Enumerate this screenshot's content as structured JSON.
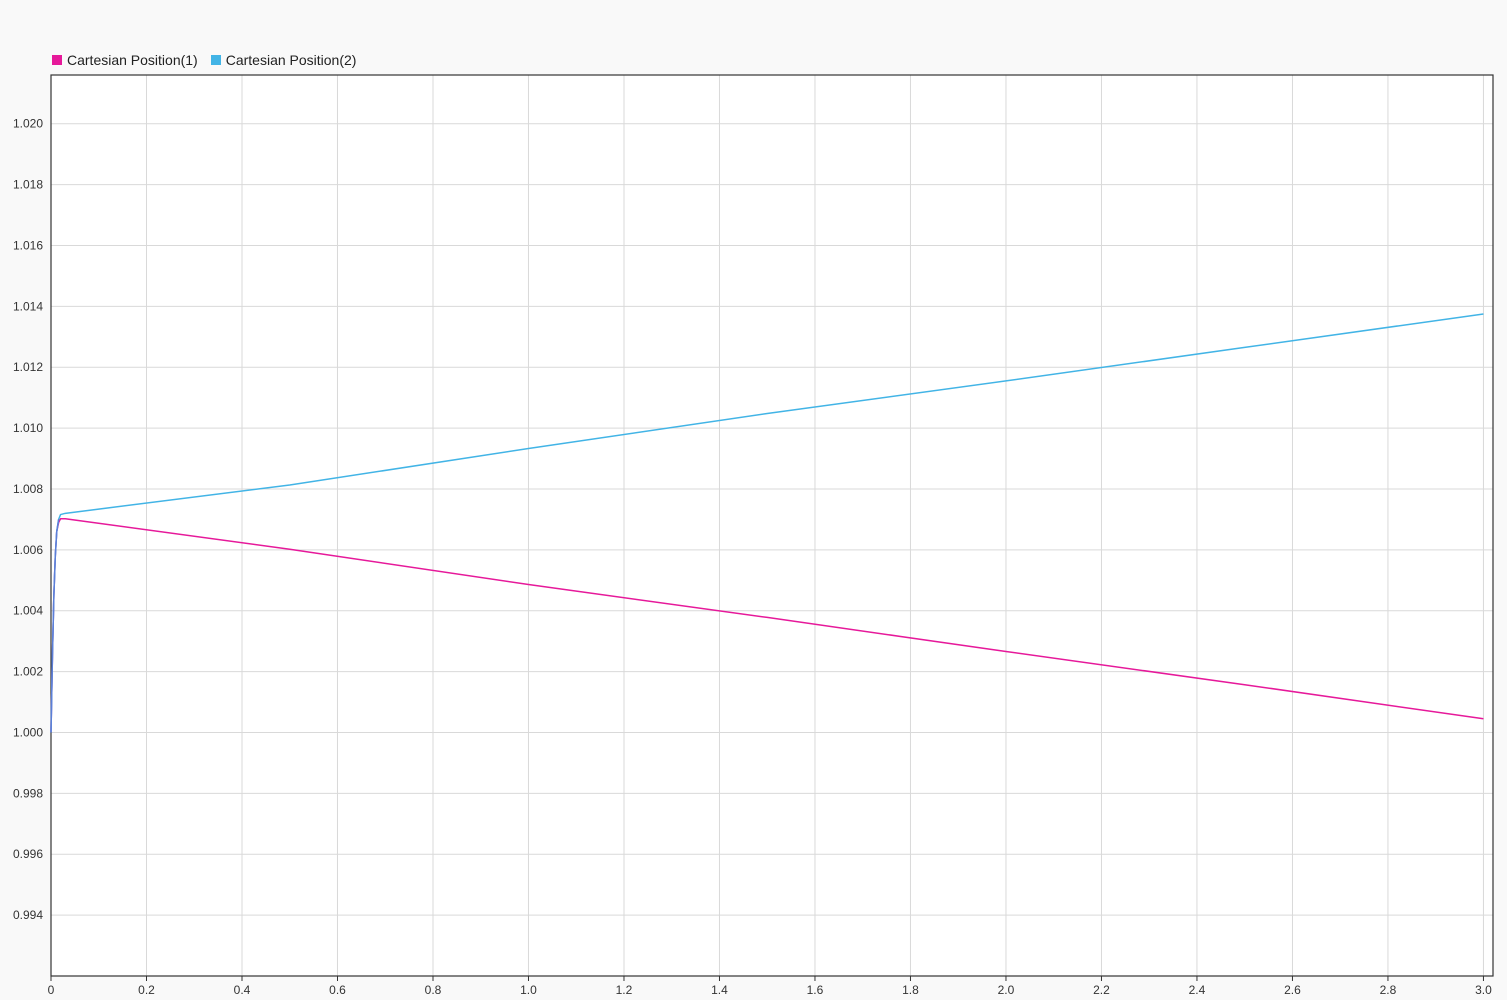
{
  "colors": {
    "background": "#f9f9f9",
    "plot_background": "#ffffff",
    "grid": "#d9d9d9",
    "axis": "#333333",
    "series1": "#e6199a",
    "series2": "#42b4e6",
    "series2_rise": "#5b7fd8"
  },
  "chart_data": {
    "type": "line",
    "title": "",
    "xlabel": "",
    "ylabel": "",
    "xlim": [
      0,
      3.02
    ],
    "ylim": [
      0.992,
      1.0216
    ],
    "grid": true,
    "legend_position": "top-left",
    "x_ticks": [
      0,
      0.2,
      0.4,
      0.6,
      0.8,
      1.0,
      1.2,
      1.4,
      1.6,
      1.8,
      2.0,
      2.2,
      2.4,
      2.6,
      2.8,
      3.0
    ],
    "x_tick_labels": [
      "0",
      "0.2",
      "0.4",
      "0.6",
      "0.8",
      "1.0",
      "1.2",
      "1.4",
      "1.6",
      "1.8",
      "2.0",
      "2.2",
      "2.4",
      "2.6",
      "2.8",
      "3.0"
    ],
    "y_ticks": [
      0.994,
      0.996,
      0.998,
      1.0,
      1.002,
      1.004,
      1.006,
      1.008,
      1.01,
      1.012,
      1.014,
      1.016,
      1.018,
      1.02
    ],
    "y_tick_labels": [
      "0.994",
      "0.996",
      "0.998",
      "1.000",
      "1.002",
      "1.004",
      "1.006",
      "1.008",
      "1.010",
      "1.012",
      "1.014",
      "1.016",
      "1.018",
      "1.020"
    ],
    "series": [
      {
        "name": "Cartesian Position(1)",
        "color": "#e6199a",
        "x": [
          0,
          0.003,
          0.006,
          0.009,
          0.012,
          0.016,
          0.02,
          0.03,
          0.5,
          1.0,
          1.5,
          2.0,
          2.5,
          3.0
        ],
        "y": [
          1.0,
          1.0025,
          1.0045,
          1.0058,
          1.0066,
          1.0069,
          1.00702,
          1.00702,
          1.00602,
          1.00486,
          1.00378,
          1.00266,
          1.00157,
          1.00045
        ]
      },
      {
        "name": "Cartesian Position(2)",
        "color": "#42b4e6",
        "x": [
          0,
          0.003,
          0.006,
          0.009,
          0.012,
          0.016,
          0.02,
          0.03,
          0.5,
          1.0,
          1.5,
          2.0,
          2.5,
          3.0
        ],
        "y": [
          1.0,
          1.0025,
          1.0045,
          1.0058,
          1.0066,
          1.007,
          1.00716,
          1.0072,
          1.00813,
          1.00933,
          1.01048,
          1.01155,
          1.01265,
          1.01375
        ]
      }
    ]
  },
  "legend": {
    "items": [
      {
        "label": "Cartesian Position(1)",
        "color": "#e6199a"
      },
      {
        "label": "Cartesian Position(2)",
        "color": "#42b4e6"
      }
    ]
  }
}
